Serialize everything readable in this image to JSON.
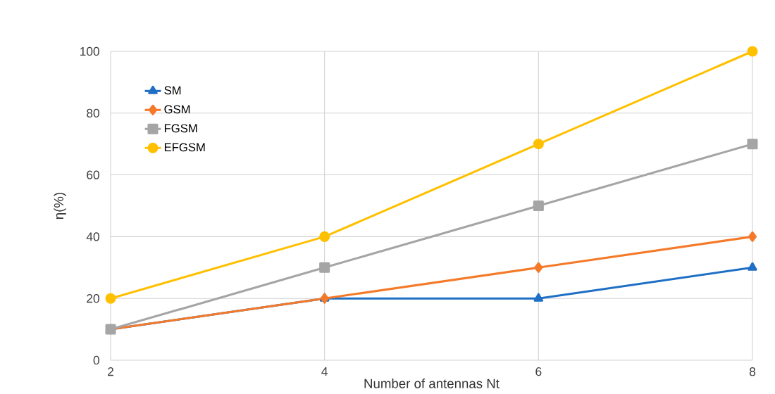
{
  "chart_data": {
    "type": "line",
    "xlabel": "Number of antennas Nt",
    "ylabel": "η(%)",
    "x": [
      2,
      4,
      6,
      8
    ],
    "series": [
      {
        "name": "SM",
        "color": "#1f6fc5",
        "marker": "triangle",
        "values": [
          10,
          20,
          20,
          30
        ]
      },
      {
        "name": "GSM",
        "color": "#f47a2a",
        "marker": "diamond",
        "values": [
          10,
          20,
          30,
          40
        ]
      },
      {
        "name": "FGSM",
        "color": "#a5a5a5",
        "marker": "square",
        "values": [
          10,
          30,
          50,
          70
        ]
      },
      {
        "name": "EFGSM",
        "color": "#ffc000",
        "marker": "circle",
        "values": [
          20,
          40,
          70,
          100
        ]
      }
    ],
    "xlim": [
      2,
      8
    ],
    "xticks": [
      2,
      4,
      6,
      8
    ],
    "ylim": [
      0,
      100
    ],
    "yticks": [
      0,
      20,
      40,
      60,
      80,
      100
    ],
    "grid": true,
    "legend": "top left",
    "line_style": "solid"
  }
}
